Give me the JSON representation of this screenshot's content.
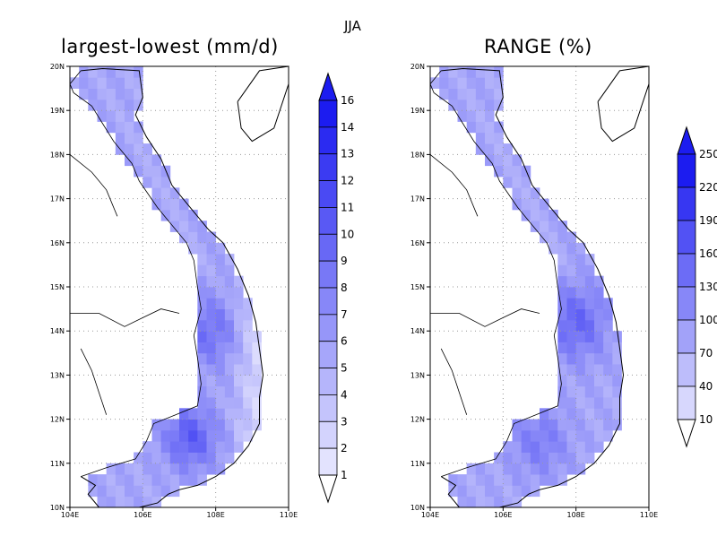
{
  "figure": {
    "supertitle": "JJA",
    "region": "Vietnam",
    "colors": {
      "ramp_low": "#f2f2ff",
      "ramp_high": "#1c1cf0",
      "coast": "#000000",
      "grid": "#999999"
    }
  },
  "maps": [
    {
      "id": "map1",
      "title": "largest-lowest (mm/d)",
      "lon_ticks": [
        "104E",
        "106E",
        "108E",
        "110E"
      ],
      "lat_ticks": [
        "10N",
        "11N",
        "12N",
        "13N",
        "14N",
        "15N",
        "16N",
        "17N",
        "18N",
        "19N",
        "20N"
      ],
      "colorbar": {
        "levels": [
          "1",
          "2",
          "3",
          "4",
          "5",
          "6",
          "7",
          "8",
          "9",
          "10",
          "11",
          "12",
          "13",
          "14",
          "16"
        ],
        "shape": "triangle-ends"
      }
    },
    {
      "id": "map2",
      "title": "RANGE (%)",
      "lon_ticks": [
        "104E",
        "106E",
        "108E",
        "110E"
      ],
      "lat_ticks": [
        "10N",
        "11N",
        "12N",
        "13N",
        "14N",
        "15N",
        "16N",
        "17N",
        "18N",
        "19N",
        "20N"
      ],
      "colorbar": {
        "levels": [
          "10",
          "40",
          "70",
          "100",
          "130",
          "160",
          "190",
          "220",
          "250"
        ],
        "shape": "triangle-ends"
      }
    }
  ]
}
